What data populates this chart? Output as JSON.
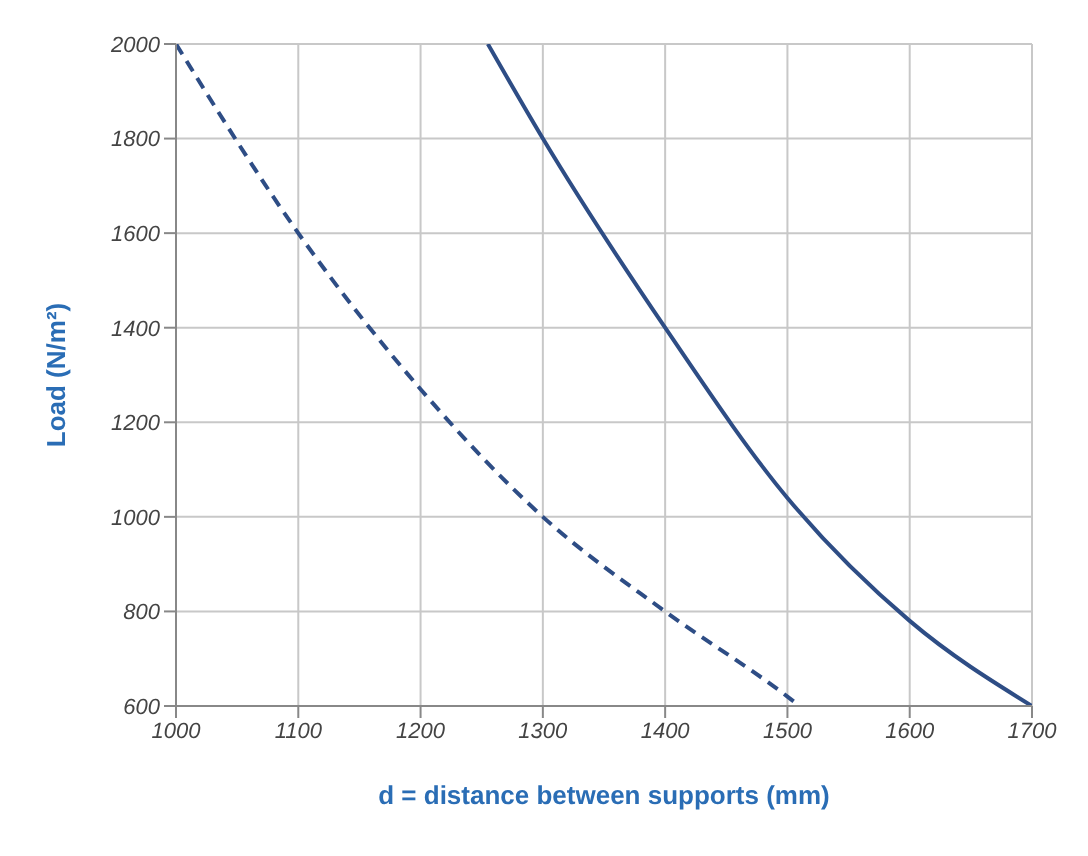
{
  "chart_data": {
    "type": "line",
    "xlabel": "d = distance between supports (mm)",
    "ylabel": "Load (N/m²)",
    "xlim": [
      1000,
      1700
    ],
    "xticks": [
      1000,
      1100,
      1200,
      1300,
      1400,
      1500,
      1600,
      1700
    ],
    "ylim": [
      600,
      2000
    ],
    "yticks": [
      600,
      800,
      1000,
      1200,
      1400,
      1600,
      1800,
      2000
    ],
    "grid": true,
    "marker": "none",
    "series": [
      {
        "color": "#2e4d85",
        "line_style": "dashed",
        "x": [
          1000,
          1100,
          1200,
          1300,
          1400,
          1500,
          1510
        ],
        "values": [
          2000,
          1600,
          1270,
          1000,
          800,
          620,
          600
        ]
      },
      {
        "color": "#2e4d85",
        "line_style": "solid",
        "x": [
          1255,
          1300,
          1400,
          1500,
          1600,
          1700
        ],
        "values": [
          2000,
          1800,
          1400,
          1040,
          780,
          600
        ]
      }
    ]
  }
}
